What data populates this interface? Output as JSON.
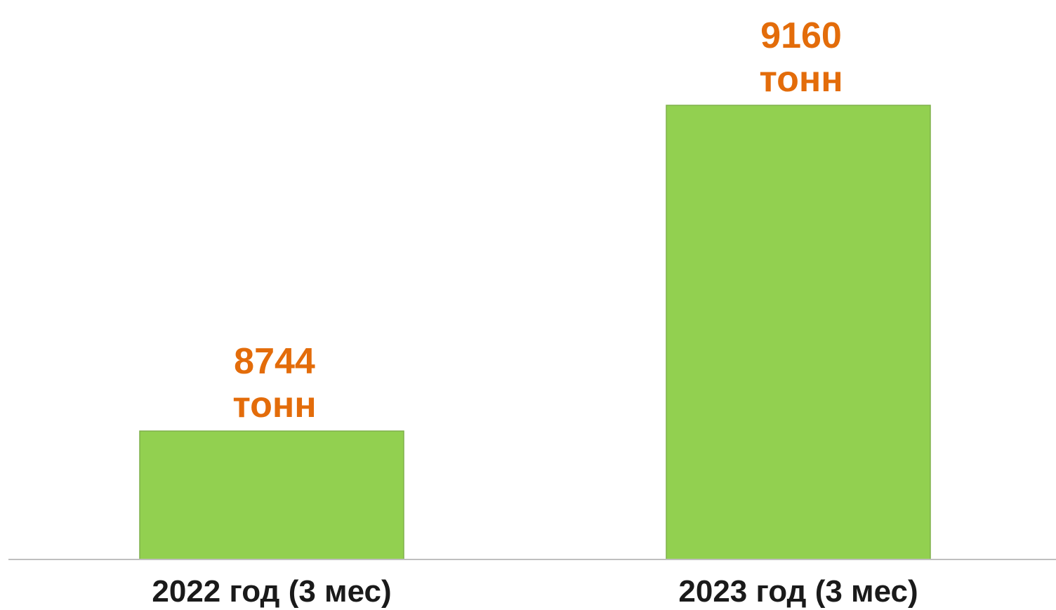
{
  "colors": {
    "bar_fill": "#92d050",
    "bar_stroke": "#7fb04a",
    "value_label": "#e36c0a",
    "category_label": "#1a1a1a",
    "axis_line": "#bfbfbf"
  },
  "chart_data": {
    "type": "bar",
    "categories": [
      "2022 год (3 мес)",
      "2023 год (3 мес)"
    ],
    "values": [
      8744,
      9160
    ],
    "value_labels": [
      "8744",
      "9160"
    ],
    "unit_label": "тонн",
    "grid": false,
    "legend": "none"
  }
}
